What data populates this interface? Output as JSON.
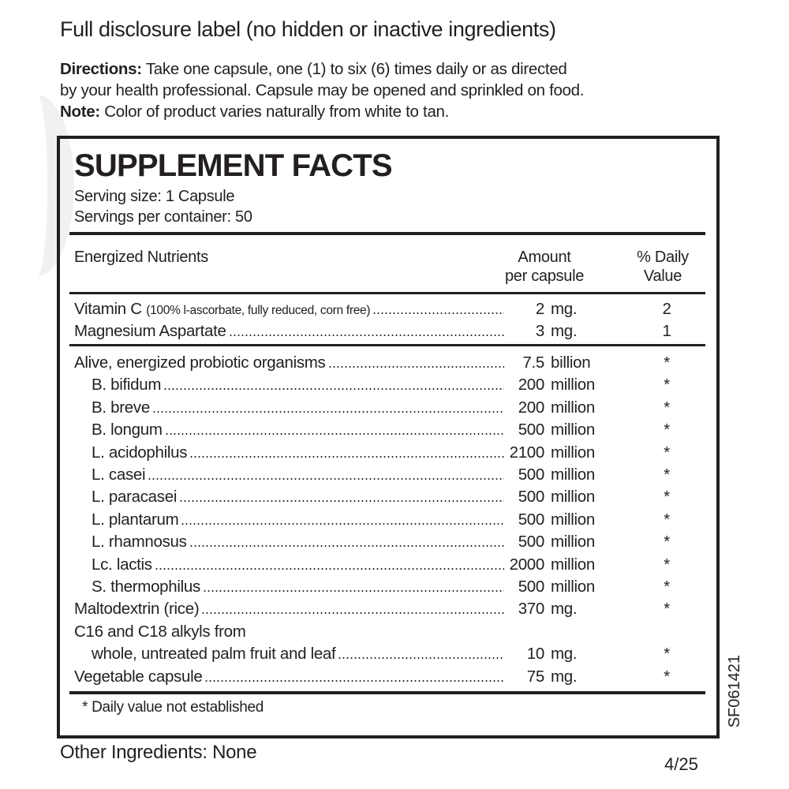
{
  "header": {
    "title": "Full disclosure label (no hidden or inactive ingredients)",
    "directions_label": "Directions:",
    "directions_line1": "Take one capsule, one (1) to six (6) times daily or as directed",
    "directions_line2": "by your health professional. Capsule may be opened and sprinkled on food.",
    "note_label": "Note:",
    "note_text": "Color of product varies naturally from white to tan."
  },
  "facts": {
    "title": "SUPPLEMENT FACTS",
    "serving_size": "Serving size: 1 Capsule",
    "servings_per_container": "Servings per container: 50",
    "columns": {
      "nutrient": "Energized Nutrients",
      "amount_1": "Amount",
      "amount_2": "per capsule",
      "dv_1": "% Daily",
      "dv_2": "Value"
    },
    "vitamins": [
      {
        "name": "Vitamin C",
        "note": "(100% l-ascorbate, fully reduced, corn free)",
        "amount": "2",
        "unit": "mg.",
        "dv": "2"
      },
      {
        "name": "Magnesium Aspartate",
        "note": "",
        "amount": "3",
        "unit": "mg.",
        "dv": "1"
      }
    ],
    "other_rows": [
      {
        "name": "Alive, energized probiotic organisms",
        "amount": "7.5",
        "unit": "billion",
        "dv": "*",
        "indent": false
      },
      {
        "name": "B. bifidum",
        "amount": "200",
        "unit": "million",
        "dv": "*",
        "indent": true
      },
      {
        "name": "B. breve",
        "amount": "200",
        "unit": "million",
        "dv": "*",
        "indent": true
      },
      {
        "name": "B. longum",
        "amount": "500",
        "unit": "million",
        "dv": "*",
        "indent": true
      },
      {
        "name": "L. acidophilus",
        "amount": "2100",
        "unit": "million",
        "dv": "*",
        "indent": true
      },
      {
        "name": "L. casei",
        "amount": "500",
        "unit": "million",
        "dv": "*",
        "indent": true
      },
      {
        "name": "L. paracasei",
        "amount": "500",
        "unit": "million",
        "dv": "*",
        "indent": true
      },
      {
        "name": "L. plantarum",
        "amount": "500",
        "unit": "million",
        "dv": "*",
        "indent": true
      },
      {
        "name": "L. rhamnosus",
        "amount": "500",
        "unit": "million",
        "dv": "*",
        "indent": true
      },
      {
        "name": "Lc. lactis",
        "amount": "2000",
        "unit": "million",
        "dv": "*",
        "indent": true
      },
      {
        "name": "S. thermophilus",
        "amount": "500",
        "unit": "million",
        "dv": "*",
        "indent": true
      },
      {
        "name": "Maltodextrin (rice)",
        "amount": "370",
        "unit": "mg.",
        "dv": "*",
        "indent": false
      },
      {
        "name": "C16 and C18 alkyls from",
        "amount": "",
        "unit": "",
        "dv": "",
        "indent": false,
        "noleader": true
      },
      {
        "name": "whole, untreated palm fruit and leaf",
        "amount": "10",
        "unit": "mg.",
        "dv": "*",
        "indent": true
      },
      {
        "name": "Vegetable capsule",
        "amount": "75",
        "unit": "mg.",
        "dv": "*",
        "indent": false
      }
    ],
    "footnote": "* Daily value not established"
  },
  "footer": {
    "other_ingredients": "Other Ingredients: None",
    "date_code": "4/25",
    "label_code": "SF061421"
  }
}
